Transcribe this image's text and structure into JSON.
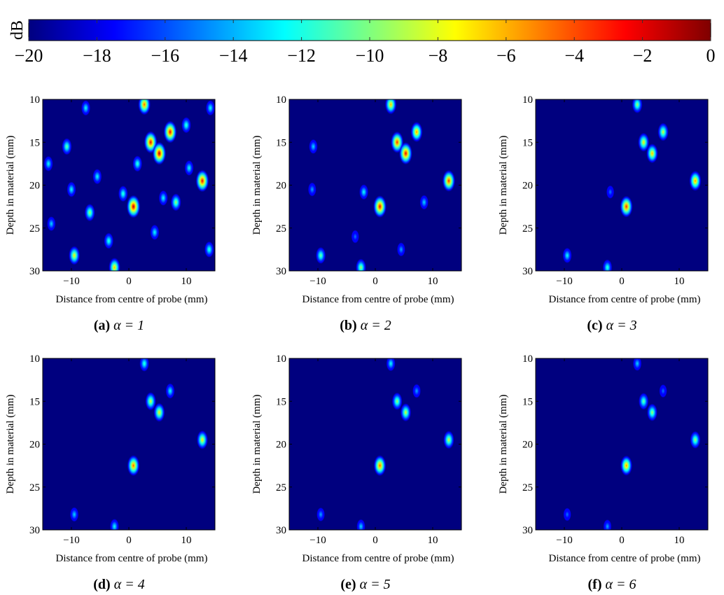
{
  "colorbar": {
    "label": "dB",
    "min": -20,
    "max": 0,
    "ticks": [
      "−20",
      "−18",
      "−16",
      "−14",
      "−12",
      "−10",
      "−8",
      "−6",
      "−4",
      "−2",
      "0"
    ],
    "colormap": "jet",
    "stops": [
      "#00007f",
      "#0000ff",
      "#007fff",
      "#00ffff",
      "#7fff7f",
      "#ffff00",
      "#ff7f00",
      "#ff0000",
      "#7f0000"
    ]
  },
  "background_color": "#00007f",
  "chart_data": [
    {
      "type": "heatmap",
      "caption_letter": "(a)",
      "caption_alpha": "α = 1",
      "xlabel": "Distance from centre of probe (mm)",
      "ylabel": "Depth in material (mm)",
      "xlim": [
        -15,
        15
      ],
      "ylim": [
        10,
        30
      ],
      "x_ticks": [
        "−10",
        "0",
        "10"
      ],
      "y_ticks": [
        "10",
        "15",
        "20",
        "25",
        "30"
      ],
      "grid": false,
      "spots": [
        {
          "x": 0.8,
          "y": 22.5,
          "db": -1
        },
        {
          "x": 3.8,
          "y": 15.0,
          "db": -2
        },
        {
          "x": 5.3,
          "y": 16.3,
          "db": -1
        },
        {
          "x": 7.2,
          "y": 13.8,
          "db": -2
        },
        {
          "x": 12.8,
          "y": 19.5,
          "db": -2
        },
        {
          "x": 2.7,
          "y": 10.6,
          "db": -4
        },
        {
          "x": -9.5,
          "y": 28.2,
          "db": -7
        },
        {
          "x": -2.5,
          "y": 29.6,
          "db": -6
        },
        {
          "x": -10.8,
          "y": 15.5,
          "db": -10
        },
        {
          "x": -6.8,
          "y": 23.2,
          "db": -9
        },
        {
          "x": 1.5,
          "y": 17.5,
          "db": -11
        },
        {
          "x": -3.5,
          "y": 26.5,
          "db": -11
        },
        {
          "x": 8.2,
          "y": 22.0,
          "db": -9
        },
        {
          "x": 14.0,
          "y": 27.5,
          "db": -11
        },
        {
          "x": -14.0,
          "y": 17.5,
          "db": -12
        },
        {
          "x": -10.0,
          "y": 20.5,
          "db": -12
        },
        {
          "x": -5.5,
          "y": 19.0,
          "db": -12
        },
        {
          "x": 10.0,
          "y": 13.0,
          "db": -11
        },
        {
          "x": -13.5,
          "y": 24.5,
          "db": -13
        },
        {
          "x": 4.5,
          "y": 25.5,
          "db": -12
        },
        {
          "x": -7.5,
          "y": 11.0,
          "db": -12
        },
        {
          "x": 14.2,
          "y": 11.0,
          "db": -12
        },
        {
          "x": 10.5,
          "y": 18.0,
          "db": -12
        },
        {
          "x": -1.0,
          "y": 21.0,
          "db": -11
        },
        {
          "x": 6.0,
          "y": 21.5,
          "db": -12
        }
      ]
    },
    {
      "type": "heatmap",
      "caption_letter": "(b)",
      "caption_alpha": "α = 2",
      "xlabel": "Distance from centre of probe (mm)",
      "ylabel": "Depth in material (mm)",
      "xlim": [
        -15,
        15
      ],
      "ylim": [
        10,
        30
      ],
      "x_ticks": [
        "−10",
        "0",
        "10"
      ],
      "y_ticks": [
        "10",
        "15",
        "20",
        "25",
        "30"
      ],
      "grid": false,
      "spots": [
        {
          "x": 0.8,
          "y": 22.5,
          "db": -2
        },
        {
          "x": 3.8,
          "y": 15.0,
          "db": -3
        },
        {
          "x": 5.3,
          "y": 16.3,
          "db": -2
        },
        {
          "x": 7.2,
          "y": 13.8,
          "db": -5
        },
        {
          "x": 12.8,
          "y": 19.5,
          "db": -3
        },
        {
          "x": 2.7,
          "y": 10.6,
          "db": -6
        },
        {
          "x": -9.5,
          "y": 28.2,
          "db": -10
        },
        {
          "x": -2.5,
          "y": 29.6,
          "db": -9
        },
        {
          "x": -10.8,
          "y": 15.5,
          "db": -13
        },
        {
          "x": -2.0,
          "y": 20.8,
          "db": -12
        },
        {
          "x": 8.5,
          "y": 22.0,
          "db": -13
        },
        {
          "x": -11.0,
          "y": 20.5,
          "db": -14
        },
        {
          "x": 4.5,
          "y": 27.5,
          "db": -14
        },
        {
          "x": -3.5,
          "y": 26.0,
          "db": -15
        }
      ]
    },
    {
      "type": "heatmap",
      "caption_letter": "(c)",
      "caption_alpha": "α = 3",
      "xlabel": "Distance from centre of probe (mm)",
      "ylabel": "Depth in material (mm)",
      "xlim": [
        -15,
        15
      ],
      "ylim": [
        10,
        30
      ],
      "x_ticks": [
        "−10",
        "0",
        "10"
      ],
      "y_ticks": [
        "10",
        "15",
        "20",
        "25",
        "30"
      ],
      "grid": false,
      "spots": [
        {
          "x": 0.8,
          "y": 22.5,
          "db": -3
        },
        {
          "x": 3.8,
          "y": 15.0,
          "db": -7
        },
        {
          "x": 5.3,
          "y": 16.3,
          "db": -6
        },
        {
          "x": 7.2,
          "y": 13.8,
          "db": -8
        },
        {
          "x": 12.8,
          "y": 19.5,
          "db": -5
        },
        {
          "x": 2.7,
          "y": 10.6,
          "db": -9
        },
        {
          "x": -9.5,
          "y": 28.2,
          "db": -12
        },
        {
          "x": -2.5,
          "y": 29.6,
          "db": -11
        },
        {
          "x": -2.0,
          "y": 20.8,
          "db": -15
        }
      ]
    },
    {
      "type": "heatmap",
      "caption_letter": "(d)",
      "caption_alpha": "α = 4",
      "xlabel": "Distance from centre of probe (mm)",
      "ylabel": "Depth in material (mm)",
      "xlim": [
        -15,
        15
      ],
      "ylim": [
        10,
        30
      ],
      "x_ticks": [
        "−10",
        "0",
        "10"
      ],
      "y_ticks": [
        "10",
        "15",
        "20",
        "25",
        "30"
      ],
      "grid": false,
      "spots": [
        {
          "x": 0.8,
          "y": 22.5,
          "db": -4
        },
        {
          "x": 3.8,
          "y": 15.0,
          "db": -8
        },
        {
          "x": 5.3,
          "y": 16.3,
          "db": -7
        },
        {
          "x": 7.2,
          "y": 13.8,
          "db": -12
        },
        {
          "x": 12.8,
          "y": 19.5,
          "db": -7
        },
        {
          "x": 2.7,
          "y": 10.6,
          "db": -11
        },
        {
          "x": -9.5,
          "y": 28.2,
          "db": -13
        },
        {
          "x": -2.5,
          "y": 29.6,
          "db": -12
        }
      ]
    },
    {
      "type": "heatmap",
      "caption_letter": "(e)",
      "caption_alpha": "α = 5",
      "xlabel": "Distance from centre of probe (mm)",
      "ylabel": "Depth in material (mm)",
      "xlim": [
        -15,
        15
      ],
      "ylim": [
        10,
        30
      ],
      "x_ticks": [
        "−10",
        "0",
        "10"
      ],
      "y_ticks": [
        "10",
        "15",
        "20",
        "25",
        "30"
      ],
      "grid": false,
      "spots": [
        {
          "x": 0.8,
          "y": 22.5,
          "db": -4
        },
        {
          "x": 3.8,
          "y": 15.0,
          "db": -9
        },
        {
          "x": 5.3,
          "y": 16.3,
          "db": -8
        },
        {
          "x": 7.2,
          "y": 13.8,
          "db": -14
        },
        {
          "x": 12.8,
          "y": 19.5,
          "db": -8
        },
        {
          "x": 2.7,
          "y": 10.6,
          "db": -12
        },
        {
          "x": -9.5,
          "y": 28.2,
          "db": -14
        },
        {
          "x": -2.5,
          "y": 29.6,
          "db": -13
        }
      ]
    },
    {
      "type": "heatmap",
      "caption_letter": "(f)",
      "caption_alpha": "α = 6",
      "xlabel": "Distance from centre of probe (mm)",
      "ylabel": "Depth in material (mm)",
      "xlim": [
        -15,
        15
      ],
      "ylim": [
        10,
        30
      ],
      "x_ticks": [
        "−10",
        "0",
        "10"
      ],
      "y_ticks": [
        "10",
        "15",
        "20",
        "25",
        "30"
      ],
      "grid": false,
      "spots": [
        {
          "x": 0.8,
          "y": 22.5,
          "db": -5
        },
        {
          "x": 3.8,
          "y": 15.0,
          "db": -10
        },
        {
          "x": 5.3,
          "y": 16.3,
          "db": -9
        },
        {
          "x": 7.2,
          "y": 13.8,
          "db": -15
        },
        {
          "x": 12.8,
          "y": 19.5,
          "db": -9
        },
        {
          "x": 2.7,
          "y": 10.6,
          "db": -13
        },
        {
          "x": -9.5,
          "y": 28.2,
          "db": -15
        },
        {
          "x": -2.5,
          "y": 29.6,
          "db": -14
        }
      ]
    }
  ]
}
